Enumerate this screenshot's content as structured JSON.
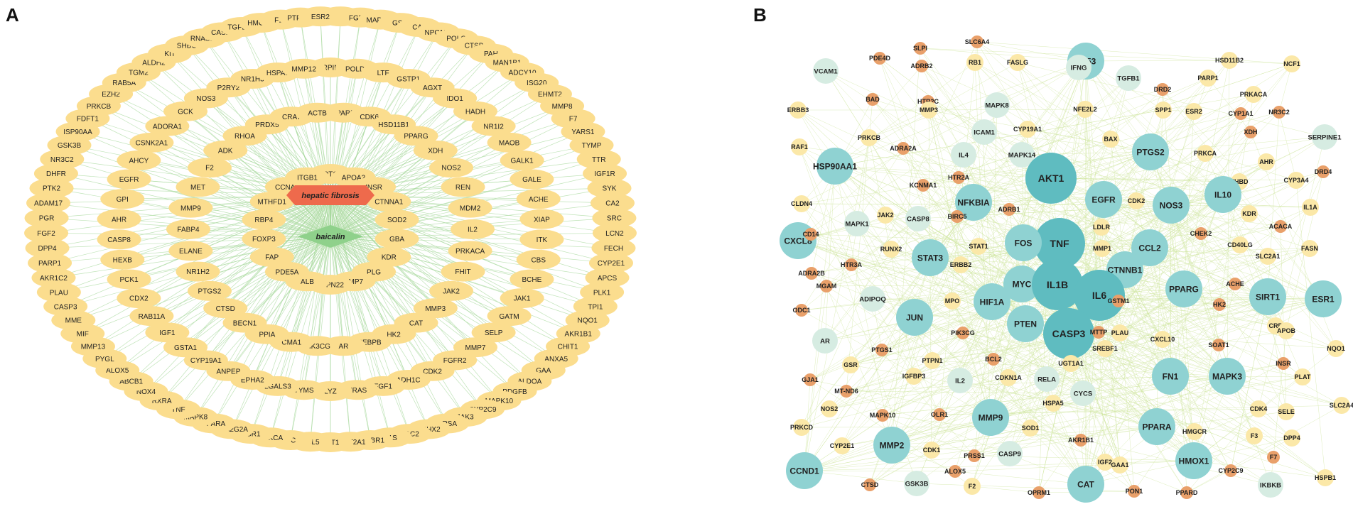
{
  "panels": {
    "a_label": "A",
    "b_label": "B"
  },
  "colors": {
    "gene_node": "#fbdd8e",
    "disease_node": "#ee6a4c",
    "drug_node": "#8fd18b",
    "edge_a": "#a9d99f",
    "edge_b": "#cfe6a0"
  },
  "network_a": {
    "disease": "hepatic fibrosis",
    "drug": "baicalin",
    "genes": [
      "OTC",
      "APOA2",
      "INSR",
      "CTNNA1",
      "SOD2",
      "GBA",
      "KDR",
      "PLG",
      "BMP7",
      "PTPN22",
      "ALB",
      "PDE5A",
      "FAP",
      "FOXP3",
      "RBP4",
      "MTHFD1",
      "CCNA2",
      "ITGB1",
      "PPARD",
      "CDK6",
      "HSD11B1",
      "PPARG",
      "XDH",
      "NOS2",
      "REN",
      "MDM2",
      "IL2",
      "PRKACA",
      "FHIT",
      "JAK2",
      "MMP3",
      "CAT",
      "HK2",
      "CEBPB",
      "AR",
      "PIK3CG",
      "CMA1",
      "PPIA",
      "BECN1",
      "CTSD",
      "PTGS2",
      "NR1H2",
      "ELANE",
      "FABP4",
      "MMP9",
      "MET",
      "F2",
      "ADK",
      "RHOA",
      "PRDX5",
      "CRAT",
      "ACTB",
      "SERPINA1",
      "POLD1",
      "LTF",
      "GSTP1",
      "AGXT",
      "IDO1",
      "HADH",
      "NR1I2",
      "MAOB",
      "GALK1",
      "GALE",
      "ACHE",
      "XIAP",
      "ITK",
      "CBS",
      "BCHE",
      "JAK1",
      "GATM",
      "SELP",
      "MMP7",
      "FGFR2",
      "CDK2",
      "ADH1C",
      "FGF1",
      "HRAS",
      "LYZ",
      "TYMS",
      "LGALS3",
      "EPHA2",
      "ANPEP",
      "CYP19A1",
      "GSTA1",
      "IGF1",
      "RAB11A",
      "CDX2",
      "PCK1",
      "HEXB",
      "CASP8",
      "AHR",
      "GPI",
      "EGFR",
      "AHCY",
      "CSNK2A1",
      "ADORA1",
      "GCK",
      "NOS3",
      "P2RY2",
      "NR1H3",
      "HSPA8",
      "MMP12",
      "DNMT1",
      "FGFR1",
      "MAPK14",
      "GSR",
      "CA4",
      "NPC1L1",
      "POLG",
      "CTSB",
      "PAH",
      "MAN1B1",
      "ADCY10",
      "ISG20",
      "EHMT2",
      "MMP8",
      "F7",
      "YARS1",
      "TYMP",
      "TTR",
      "IGF1R",
      "SYK",
      "CA2",
      "SRC",
      "LCN2",
      "FECH",
      "CYP2E1",
      "APCS",
      "PLK1",
      "TPI1",
      "NQO1",
      "AKR1B1",
      "CHIT1",
      "ANXA5",
      "GAA",
      "ALDOA",
      "PDGFB",
      "MAPK10",
      "CYP2C9",
      "JAK3",
      "ARSA",
      "EPHX2",
      "RAC2",
      "C1S",
      "TGFBR1",
      "SULT2A1",
      "AKT1",
      "CCL5",
      "GC",
      "PRKCA",
      "ESR1",
      "PLA2G2A",
      "PPARA",
      "MAPK8",
      "TNF",
      "RXRA",
      "NOX4",
      "ABCB1",
      "ALOX5",
      "PYGL",
      "MMP13",
      "MIF",
      "MME",
      "CASP3",
      "PLAU",
      "AKR1C2",
      "PARP1",
      "DPP4",
      "FGF2",
      "PGR",
      "ADAM17",
      "PTK2",
      "DHFR",
      "NR3C2",
      "GSK3B",
      "ISP90AA",
      "FDFT1",
      "PRKCB",
      "EZH2",
      "RAB5A",
      "TGM2",
      "ALDH2",
      "KIT",
      "SHBG",
      "RNASE3",
      "CASP1",
      "TGFBR2",
      "HMGCR",
      "F10",
      "PTPN11",
      "ESR2"
    ]
  },
  "network_b": {
    "nodes": [
      {
        "id": "TP53",
        "c": "t"
      },
      {
        "id": "SLC6A4",
        "c": "o"
      },
      {
        "id": "SLPI",
        "c": "o"
      },
      {
        "id": "PDE4D",
        "c": "o"
      },
      {
        "id": "ADRB2",
        "c": "o"
      },
      {
        "id": "RB1",
        "c": "y"
      },
      {
        "id": "FASLG",
        "c": "y"
      },
      {
        "id": "IFNG",
        "c": "g"
      },
      {
        "id": "HSD11B2",
        "c": "y"
      },
      {
        "id": "NCF1",
        "c": "y"
      },
      {
        "id": "VCAM1",
        "c": "g"
      },
      {
        "id": "TGFB1",
        "c": "g"
      },
      {
        "id": "DRD2",
        "c": "o"
      },
      {
        "id": "PARP1",
        "c": "y"
      },
      {
        "id": "PRKACA",
        "c": "y"
      },
      {
        "id": "BAD",
        "c": "o"
      },
      {
        "id": "HTR2C",
        "c": "o"
      },
      {
        "id": "MMP3",
        "c": "y"
      },
      {
        "id": "MAPK8",
        "c": "g"
      },
      {
        "id": "NFE2L2",
        "c": "y"
      },
      {
        "id": "SPP1",
        "c": "y"
      },
      {
        "id": "ESR2",
        "c": "y"
      },
      {
        "id": "CYP1A1",
        "c": "o"
      },
      {
        "id": "NR3C2",
        "c": "o"
      },
      {
        "id": "ERBB3",
        "c": "y"
      },
      {
        "id": "ICAM1",
        "c": "g"
      },
      {
        "id": "CYP19A1",
        "c": "y"
      },
      {
        "id": "BAX",
        "c": "y"
      },
      {
        "id": "PTGS2",
        "c": "t"
      },
      {
        "id": "PRKCA",
        "c": "y"
      },
      {
        "id": "XDH",
        "c": "o"
      },
      {
        "id": "SERPINE1",
        "c": "g"
      },
      {
        "id": "PRKCB",
        "c": "y"
      },
      {
        "id": "RAF1",
        "c": "y"
      },
      {
        "id": "ADRA2A",
        "c": "o"
      },
      {
        "id": "IL4",
        "c": "g"
      },
      {
        "id": "MAPK14",
        "c": "g"
      },
      {
        "id": "AHR",
        "c": "y"
      },
      {
        "id": "HSP90AA1",
        "c": "t"
      },
      {
        "id": "HTR2A",
        "c": "o"
      },
      {
        "id": "AKT1",
        "c": "T"
      },
      {
        "id": "THBD",
        "c": "y"
      },
      {
        "id": "CYP3A4",
        "c": "y"
      },
      {
        "id": "DRD4",
        "c": "o"
      },
      {
        "id": "KCNMA1",
        "c": "o"
      },
      {
        "id": "EGFR",
        "c": "t"
      },
      {
        "id": "NOS3",
        "c": "t"
      },
      {
        "id": "IL10",
        "c": "t"
      },
      {
        "id": "CLDN4",
        "c": "y"
      },
      {
        "id": "JAK2",
        "c": "y"
      },
      {
        "id": "NFKBIA",
        "c": "t"
      },
      {
        "id": "CDK2",
        "c": "y"
      },
      {
        "id": "KDR",
        "c": "y"
      },
      {
        "id": "IL1A",
        "c": "y"
      },
      {
        "id": "ADRB1",
        "c": "o"
      },
      {
        "id": "BIRC5",
        "c": "o"
      },
      {
        "id": "CASP8",
        "c": "g"
      },
      {
        "id": "CXCL8",
        "c": "t"
      },
      {
        "id": "MAPK1",
        "c": "g"
      },
      {
        "id": "LDLR",
        "c": "y"
      },
      {
        "id": "CD14",
        "c": "o"
      },
      {
        "id": "TNF",
        "c": "T"
      },
      {
        "id": "CHEK2",
        "c": "o"
      },
      {
        "id": "ACACA",
        "c": "o"
      },
      {
        "id": "RUNX2",
        "c": "y"
      },
      {
        "id": "STAT1",
        "c": "y"
      },
      {
        "id": "FOS",
        "c": "t"
      },
      {
        "id": "MMP1",
        "c": "y"
      },
      {
        "id": "CCL2",
        "c": "t"
      },
      {
        "id": "CD40LG",
        "c": "y"
      },
      {
        "id": "STAT3",
        "c": "t"
      },
      {
        "id": "HTR3A",
        "c": "o"
      },
      {
        "id": "FASN",
        "c": "y"
      },
      {
        "id": "SLC2A1",
        "c": "y"
      },
      {
        "id": "ERBB2",
        "c": "y"
      },
      {
        "id": "CTNNB1",
        "c": "t"
      },
      {
        "id": "ADRA2B",
        "c": "o"
      },
      {
        "id": "MGAM",
        "c": "o"
      },
      {
        "id": "MYC",
        "c": "t"
      },
      {
        "id": "IL1B",
        "c": "T"
      },
      {
        "id": "PPARG",
        "c": "t"
      },
      {
        "id": "ACHE",
        "c": "o"
      },
      {
        "id": "SIRT1",
        "c": "t"
      },
      {
        "id": "ESR1",
        "c": "t"
      },
      {
        "id": "IL6",
        "c": "T"
      },
      {
        "id": "ADIPOQ",
        "c": "g"
      },
      {
        "id": "MPO",
        "c": "y"
      },
      {
        "id": "GSTM1",
        "c": "o"
      },
      {
        "id": "ODC1",
        "c": "o"
      },
      {
        "id": "JUN",
        "c": "t"
      },
      {
        "id": "HIF1A",
        "c": "t"
      },
      {
        "id": "HK2",
        "c": "o"
      },
      {
        "id": "PTEN",
        "c": "t"
      },
      {
        "id": "CRP",
        "c": "y"
      },
      {
        "id": "APOB",
        "c": "y"
      },
      {
        "id": "CASP3",
        "c": "T"
      },
      {
        "id": "PIK3CG",
        "c": "o"
      },
      {
        "id": "MTTP",
        "c": "o"
      },
      {
        "id": "PLAU",
        "c": "y"
      },
      {
        "id": "CXCL10",
        "c": "y"
      },
      {
        "id": "SOAT1",
        "c": "o"
      },
      {
        "id": "NQO1",
        "c": "y"
      },
      {
        "id": "AR",
        "c": "g"
      },
      {
        "id": "PTGS1",
        "c": "o"
      },
      {
        "id": "SREBF1",
        "c": "y"
      },
      {
        "id": "PTPN1",
        "c": "y"
      },
      {
        "id": "BCL2",
        "c": "o"
      },
      {
        "id": "UGT1A1",
        "c": "y"
      },
      {
        "id": "INSR",
        "c": "o"
      },
      {
        "id": "GSR",
        "c": "y"
      },
      {
        "id": "IGFBP3",
        "c": "y"
      },
      {
        "id": "GJA1",
        "c": "o"
      },
      {
        "id": "MAPK3",
        "c": "t"
      },
      {
        "id": "FN1",
        "c": "t"
      },
      {
        "id": "CDKN1A",
        "c": "y"
      },
      {
        "id": "PLAT",
        "c": "y"
      },
      {
        "id": "MT-ND6",
        "c": "o"
      },
      {
        "id": "IL2",
        "c": "g"
      },
      {
        "id": "RELA",
        "c": "g"
      },
      {
        "id": "CYCS",
        "c": "g"
      },
      {
        "id": "SLC2A4",
        "c": "y"
      },
      {
        "id": "NOS2",
        "c": "y"
      },
      {
        "id": "HSPA5",
        "c": "y"
      },
      {
        "id": "CDK4",
        "c": "y"
      },
      {
        "id": "SELE",
        "c": "y"
      },
      {
        "id": "MAPK10",
        "c": "o"
      },
      {
        "id": "OLR1",
        "c": "o"
      },
      {
        "id": "MMP9",
        "c": "t"
      },
      {
        "id": "PPARA",
        "c": "t"
      },
      {
        "id": "HMGCR",
        "c": "y"
      },
      {
        "id": "PRKCD",
        "c": "y"
      },
      {
        "id": "SOD1",
        "c": "y"
      },
      {
        "id": "F3",
        "c": "y"
      },
      {
        "id": "DPP4",
        "c": "y"
      },
      {
        "id": "MMP2",
        "c": "t"
      },
      {
        "id": "CYP2E1",
        "c": "y"
      },
      {
        "id": "AKR1B1",
        "c": "o"
      },
      {
        "id": "CDK1",
        "c": "y"
      },
      {
        "id": "PRSS1",
        "c": "o"
      },
      {
        "id": "CASP9",
        "c": "g"
      },
      {
        "id": "F7",
        "c": "o"
      },
      {
        "id": "IGF2",
        "c": "y"
      },
      {
        "id": "GAA1",
        "c": "y"
      },
      {
        "id": "HMOX1",
        "c": "t"
      },
      {
        "id": "CYP2C9",
        "c": "o"
      },
      {
        "id": "ALOX5",
        "c": "o"
      },
      {
        "id": "CCND1",
        "c": "t"
      },
      {
        "id": "HSPB1",
        "c": "y"
      },
      {
        "id": "IKBKB",
        "c": "g"
      },
      {
        "id": "CTSD",
        "c": "o"
      },
      {
        "id": "GSK3B",
        "c": "g"
      },
      {
        "id": "F2",
        "c": "y"
      },
      {
        "id": "OPRM1",
        "c": "o"
      },
      {
        "id": "CAT",
        "c": "t"
      },
      {
        "id": "PON1",
        "c": "o"
      },
      {
        "id": "PPARD",
        "c": "o"
      }
    ]
  }
}
